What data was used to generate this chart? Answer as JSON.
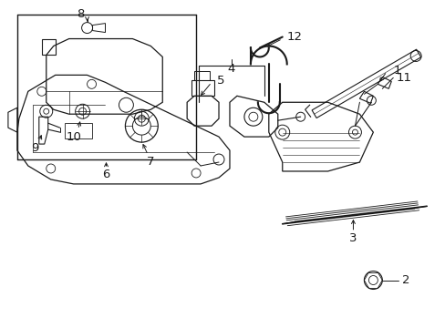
{
  "background_color": "#ffffff",
  "figure_width": 4.89,
  "figure_height": 3.6,
  "dpi": 100,
  "color": "#1a1a1a"
}
